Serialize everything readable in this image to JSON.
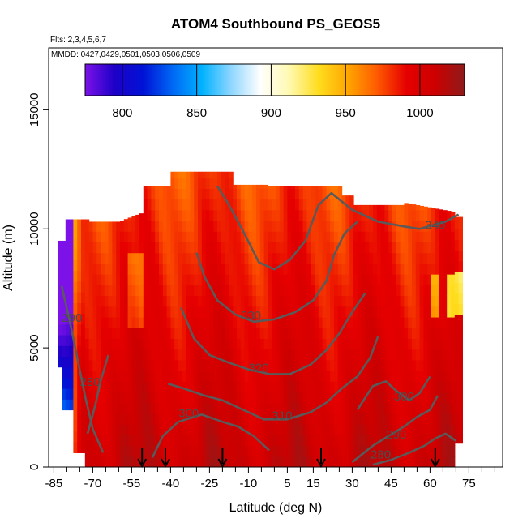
{
  "chart_data": {
    "type": "heatmap",
    "title": "ATOM4 Southbound PS_GEOS5",
    "flights_label": "Flts: 2,3,4,5,6,7",
    "dates_label": "MMDD: 0427,0429,0501,0503,0506,0509",
    "xlabel": "Latitude (deg N)",
    "ylabel": "Altitude (m)",
    "xlim": [
      -87,
      88
    ],
    "ylim": [
      0,
      17600
    ],
    "x_tick_labels": [
      "-85",
      "-70",
      "-55",
      "-40",
      "-25",
      "-10",
      "5",
      "15",
      "30",
      "45",
      "60",
      "75"
    ],
    "x_tick_values": [
      -85,
      -70,
      -55,
      -40,
      -25,
      -10,
      5,
      15,
      30,
      45,
      60,
      75
    ],
    "x_minor_ticks": [
      -85,
      -80,
      -75,
      -70,
      -65,
      -60,
      -55,
      -50,
      -45,
      -40,
      -35,
      -30,
      -25,
      -20,
      -15,
      -10,
      -5,
      0,
      5,
      10,
      15,
      20,
      25,
      30,
      35,
      40,
      45,
      50,
      55,
      60,
      65,
      70,
      75,
      80,
      85
    ],
    "y_ticks": [
      0,
      5000,
      10000,
      15000
    ],
    "y_tick_labels": [
      "0",
      "5000",
      "10000",
      "15000"
    ],
    "colorbar": {
      "range": [
        775,
        1030
      ],
      "tick_values": [
        800,
        850,
        900,
        950,
        1000
      ],
      "tick_labels": [
        "800",
        "850",
        "900",
        "950",
        "1000"
      ],
      "colors": [
        "#7c12e8",
        "#1d00c8",
        "#0013d6",
        "#0068f5",
        "#00b2ff",
        "#8fd6ff",
        "#ffffff",
        "#fff9b0",
        "#ffdd1e",
        "#ffa600",
        "#ff5a00",
        "#e60000",
        "#cc0000",
        "#8e1b1b"
      ]
    },
    "theta_contours": [
      {
        "level": 280,
        "label": "280",
        "label_pos": [
          -71,
          3400
        ],
        "points": [
          [
            -72,
            1400
          ],
          [
            -69,
            2600
          ],
          [
            -67,
            3600
          ],
          [
            -64,
            4700
          ]
        ]
      },
      {
        "level": 280,
        "label": "280",
        "label_pos": [
          41,
          350
        ],
        "points": [
          [
            38,
            100
          ],
          [
            45,
            300
          ],
          [
            52,
            600
          ],
          [
            58,
            900
          ],
          [
            62,
            1200
          ],
          [
            66,
            1400
          ],
          [
            70,
            1100
          ]
        ]
      },
      {
        "level": 290,
        "label": "290",
        "label_pos": [
          -78,
          6100
        ],
        "points": [
          [
            -82,
            7600
          ],
          [
            -79,
            6200
          ],
          [
            -76,
            4600
          ],
          [
            -73,
            3000
          ],
          [
            -70,
            1600
          ],
          [
            -66,
            600
          ]
        ]
      },
      {
        "level": 290,
        "label": "290",
        "label_pos": [
          47,
          1200
        ],
        "points": [
          [
            30,
            200
          ],
          [
            38,
            900
          ],
          [
            44,
            1300
          ],
          [
            50,
            1700
          ],
          [
            55,
            2100
          ],
          [
            60,
            2400
          ],
          [
            63,
            3000
          ]
        ]
      },
      {
        "level": 300,
        "label": "300",
        "label_pos": [
          -33,
          2100
        ],
        "points": [
          [
            -47,
            400
          ],
          [
            -43,
            1300
          ],
          [
            -37,
            1900
          ],
          [
            -28,
            2200
          ],
          [
            -20,
            1900
          ],
          [
            -14,
            1700
          ],
          [
            -8,
            1300
          ],
          [
            -2,
            700
          ]
        ]
      },
      {
        "level": 300,
        "label": "300",
        "label_pos": [
          50,
          2800
        ],
        "points": [
          [
            32,
            2400
          ],
          [
            38,
            3400
          ],
          [
            43,
            3600
          ],
          [
            47,
            3200
          ],
          [
            52,
            2800
          ],
          [
            56,
            3100
          ],
          [
            60,
            3800
          ]
        ]
      },
      {
        "level": 310,
        "label": "310",
        "label_pos": [
          3,
          2000
        ],
        "points": [
          [
            -41,
            3500
          ],
          [
            -35,
            3300
          ],
          [
            -27,
            3000
          ],
          [
            -20,
            2800
          ],
          [
            -12,
            2400
          ],
          [
            -4,
            2000
          ],
          [
            5,
            2000
          ],
          [
            14,
            2300
          ],
          [
            20,
            2700
          ],
          [
            26,
            3300
          ],
          [
            32,
            3800
          ],
          [
            37,
            4600
          ],
          [
            40,
            5500
          ]
        ]
      },
      {
        "level": 320,
        "label": "320",
        "label_pos": [
          -6,
          4000
        ],
        "points": [
          [
            -36,
            6700
          ],
          [
            -31,
            5400
          ],
          [
            -25,
            4700
          ],
          [
            -18,
            4400
          ],
          [
            -10,
            4100
          ],
          [
            -2,
            3900
          ],
          [
            6,
            3900
          ],
          [
            14,
            4300
          ],
          [
            20,
            4900
          ],
          [
            25,
            5600
          ],
          [
            30,
            6500
          ],
          [
            35,
            7300
          ]
        ]
      },
      {
        "level": 330,
        "label": "330",
        "label_pos": [
          -9,
          6200
        ],
        "points": [
          [
            -30,
            9000
          ],
          [
            -27,
            8000
          ],
          [
            -22,
            7000
          ],
          [
            -15,
            6400
          ],
          [
            -8,
            6100
          ],
          [
            0,
            6200
          ],
          [
            8,
            6500
          ],
          [
            15,
            7000
          ],
          [
            20,
            7800
          ],
          [
            23,
            8900
          ],
          [
            27,
            9800
          ],
          [
            32,
            10300
          ]
        ]
      },
      {
        "level": 340,
        "label": "340",
        "label_pos": [
          62,
          10000
        ],
        "points": [
          [
            -22,
            11800
          ],
          [
            -18,
            11100
          ],
          [
            -12,
            9900
          ],
          [
            -6,
            8600
          ],
          [
            0,
            8300
          ],
          [
            6,
            8700
          ],
          [
            12,
            9500
          ],
          [
            17,
            11000
          ],
          [
            22,
            11500
          ],
          [
            30,
            10800
          ],
          [
            40,
            10300
          ],
          [
            50,
            10100
          ],
          [
            56,
            10000
          ],
          [
            66,
            10300
          ],
          [
            71,
            10600
          ]
        ]
      }
    ],
    "flight_markers_lat": [
      -51,
      -42,
      -20,
      18,
      62
    ]
  }
}
